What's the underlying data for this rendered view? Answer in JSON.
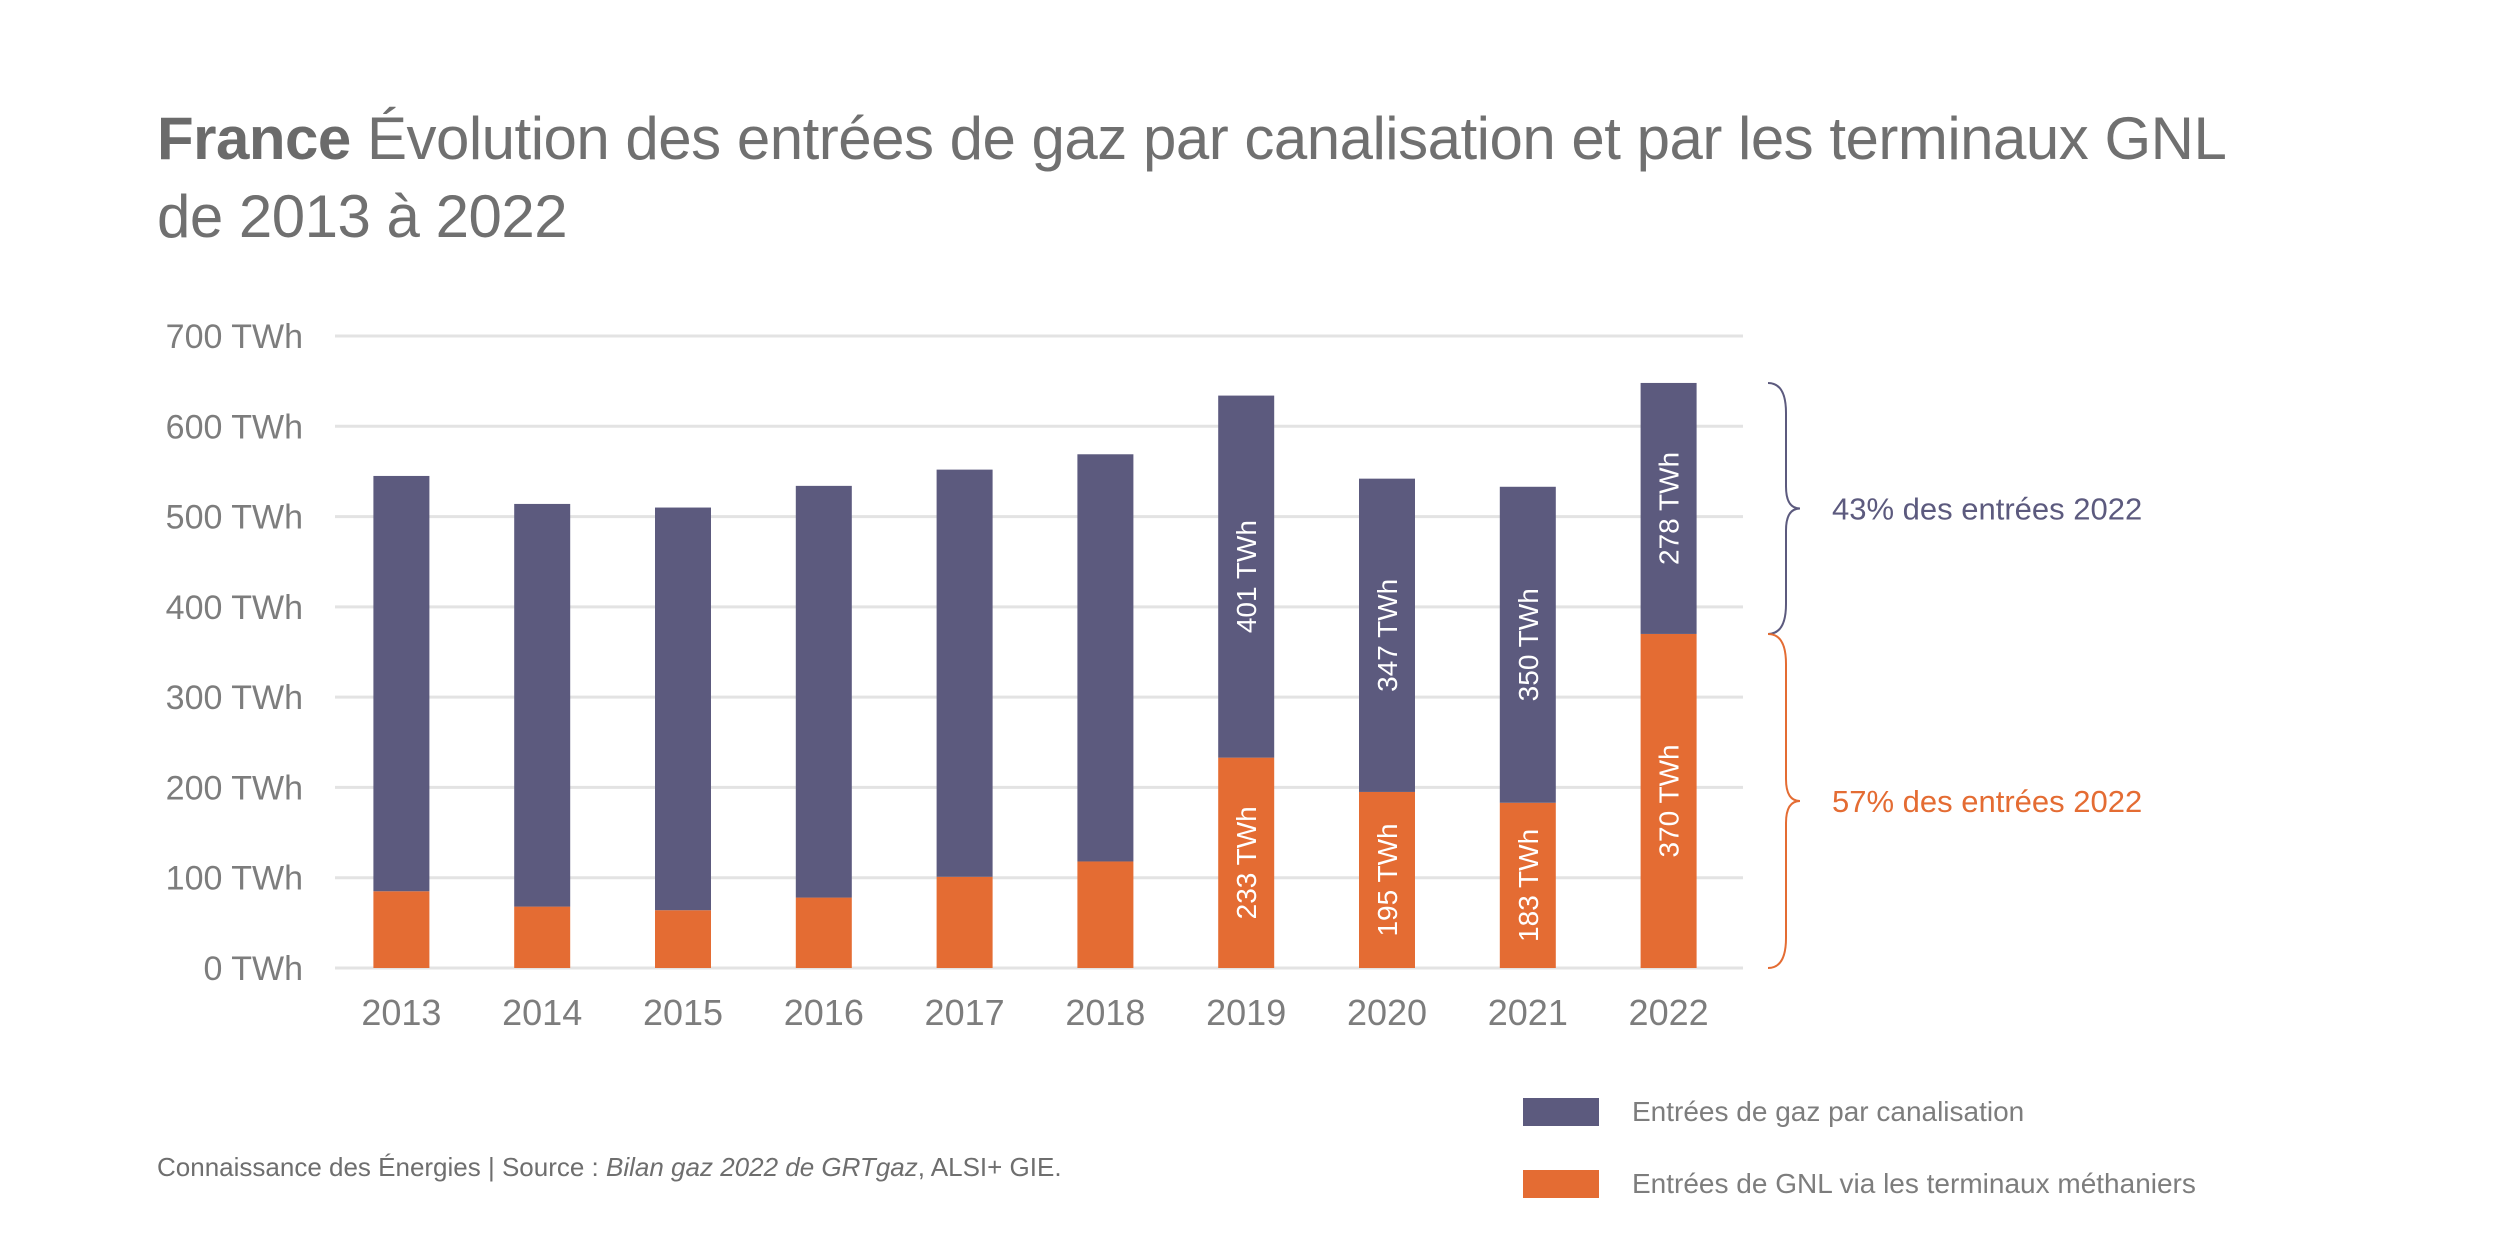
{
  "title": {
    "bold": "France",
    "rest": "Évolution des entrées de gaz par canalisation et par les terminaux GNL",
    "line2": "de 2013 à 2022"
  },
  "colors": {
    "pipeline": "#5c5a7e",
    "lng": "#e46c33",
    "grid": "#e3e3e3",
    "text": "#7d7d7d"
  },
  "chart_data": {
    "type": "bar",
    "stacked": true,
    "title": "France Évolution des entrées de gaz par canalisation et par les terminaux GNL de 2013 à 2022",
    "xlabel": "",
    "ylabel": "",
    "ylim": [
      0,
      700
    ],
    "yticks": [
      0,
      100,
      200,
      300,
      400,
      500,
      600,
      700
    ],
    "ytick_labels": [
      "0 TWh",
      "100 TWh",
      "200 TWh",
      "300 TWh",
      "400 TWh",
      "500 TWh",
      "600 TWh",
      "700 TWh"
    ],
    "grid": true,
    "categories": [
      "2013",
      "2014",
      "2015",
      "2016",
      "2017",
      "2018",
      "2019",
      "2020",
      "2021",
      "2022"
    ],
    "series": [
      {
        "name": "Entrées de GNL via les terminaux méthaniers",
        "color": "#e46c33",
        "values": [
          85,
          68,
          64,
          78,
          101,
          118,
          233,
          195,
          183,
          370
        ],
        "labels": [
          null,
          null,
          null,
          null,
          null,
          null,
          "233 TWh",
          "195 TWh",
          "183 TWh",
          "370 TWh"
        ]
      },
      {
        "name": "Entrées de gaz par canalisation",
        "color": "#5c5a7e",
        "values": [
          460,
          446,
          446,
          456,
          451,
          451,
          401,
          347,
          350,
          278
        ],
        "labels": [
          null,
          null,
          null,
          null,
          null,
          null,
          "401 TWh",
          "347 TWh",
          "350 TWh",
          "278 TWh"
        ]
      }
    ],
    "annotations": [
      {
        "text": "43% des entrées 2022",
        "series": "Entrées de gaz par canalisation",
        "category": "2022",
        "color": "#5c5a7e"
      },
      {
        "text": "57% des entrées 2022",
        "series": "Entrées de GNL via les terminaux méthaniers",
        "category": "2022",
        "color": "#e46c33"
      }
    ],
    "legend": {
      "position": "bottom-right",
      "entries": [
        "Entrées de gaz par canalisation",
        "Entrées de GNL via les terminaux méthaniers"
      ]
    }
  },
  "legend": [
    {
      "label": "Entrées de gaz par canalisation",
      "color": "#5c5a7e"
    },
    {
      "label": "Entrées de GNL via les terminaux méthaniers",
      "color": "#e46c33"
    }
  ],
  "source": {
    "prefix": "Connaissance des Énergies | Source : ",
    "italic": "Bilan gaz 2022 de GRTgaz",
    "suffix": ", ALSI+ GIE."
  }
}
